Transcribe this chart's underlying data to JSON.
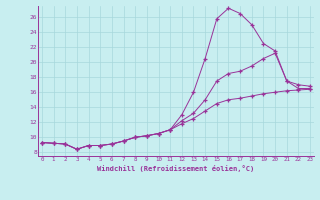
{
  "xlabel": "Windchill (Refroidissement éolien,°C)",
  "bg_color": "#c8eef0",
  "line_color": "#993399",
  "grid_color": "#a8d8dc",
  "yticks": [
    8,
    10,
    12,
    14,
    16,
    18,
    20,
    22,
    24,
    26
  ],
  "xticks": [
    0,
    1,
    2,
    3,
    4,
    5,
    6,
    7,
    8,
    9,
    10,
    11,
    12,
    13,
    14,
    15,
    16,
    17,
    18,
    19,
    20,
    21,
    22,
    23
  ],
  "line1_x": [
    0,
    1,
    2,
    3,
    4,
    5,
    6,
    7,
    8,
    9,
    10,
    11,
    12,
    13,
    14,
    15,
    16,
    17,
    18,
    19,
    20,
    21,
    22,
    23
  ],
  "line1_y": [
    9.3,
    9.2,
    9.1,
    8.4,
    8.9,
    8.9,
    9.1,
    9.5,
    10.0,
    10.2,
    10.5,
    11.0,
    11.8,
    12.5,
    13.5,
    14.5,
    15.0,
    15.2,
    15.5,
    15.8,
    16.0,
    16.2,
    16.3,
    16.4
  ],
  "line2_x": [
    0,
    1,
    2,
    3,
    4,
    5,
    6,
    7,
    8,
    9,
    10,
    11,
    12,
    13,
    14,
    15,
    16,
    17,
    18,
    19,
    20,
    21,
    22,
    23
  ],
  "line2_y": [
    9.3,
    9.2,
    9.1,
    8.4,
    8.9,
    8.9,
    9.1,
    9.5,
    10.0,
    10.2,
    10.5,
    11.0,
    12.2,
    13.2,
    15.0,
    17.5,
    18.5,
    18.8,
    19.5,
    20.5,
    21.2,
    17.5,
    17.0,
    16.8
  ],
  "line3_x": [
    0,
    1,
    2,
    3,
    4,
    5,
    6,
    7,
    8,
    9,
    10,
    11,
    12,
    13,
    14,
    15,
    16,
    17,
    18,
    19,
    20,
    21,
    22,
    23
  ],
  "line3_y": [
    9.3,
    9.2,
    9.1,
    8.4,
    8.9,
    8.9,
    9.1,
    9.5,
    10.0,
    10.2,
    10.5,
    11.0,
    13.0,
    16.0,
    20.5,
    25.8,
    27.2,
    26.5,
    25.0,
    22.5,
    21.5,
    17.5,
    16.5,
    16.5
  ]
}
